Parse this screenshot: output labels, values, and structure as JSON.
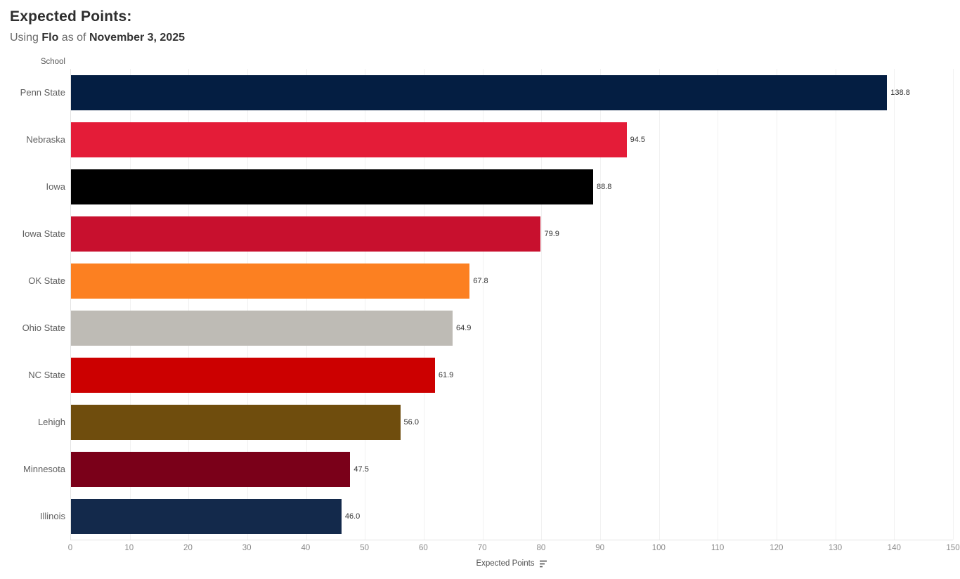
{
  "header": {
    "title": "Expected Points:",
    "subtitle": {
      "prefix": "Using ",
      "bold1": "Flo",
      "middle": " as of ",
      "bold2": "November 3, 2025"
    }
  },
  "axis": {
    "row_header": "School",
    "x_label": "Expected Points"
  },
  "chart_data": {
    "type": "bar",
    "orientation": "horizontal",
    "title": "Expected Points: Using Flo as of November 3, 2025",
    "xlabel": "Expected Points",
    "ylabel": "School",
    "xlim": [
      0,
      150
    ],
    "ticks": [
      0,
      10,
      20,
      30,
      40,
      50,
      60,
      70,
      80,
      90,
      100,
      110,
      120,
      130,
      140,
      150
    ],
    "grid": "vertical-light",
    "categories": [
      "Penn State",
      "Nebraska",
      "Iowa",
      "Iowa State",
      "OK State",
      "Ohio State",
      "NC State",
      "Lehigh",
      "Minnesota",
      "Illinois"
    ],
    "values": [
      138.8,
      94.5,
      88.8,
      79.9,
      67.8,
      64.9,
      61.9,
      56.0,
      47.5,
      46.0
    ],
    "value_labels": [
      "138.8",
      "94.5",
      "88.8",
      "79.9",
      "67.8",
      "64.9",
      "61.9",
      "56.0",
      "47.5",
      "46.0"
    ],
    "bar_colors": [
      "#041E42",
      "#E41C38",
      "#000000",
      "#C8102E",
      "#FC8021",
      "#BEBBB5",
      "#CC0000",
      "#6F4D0D",
      "#7A0019",
      "#13294B"
    ]
  }
}
